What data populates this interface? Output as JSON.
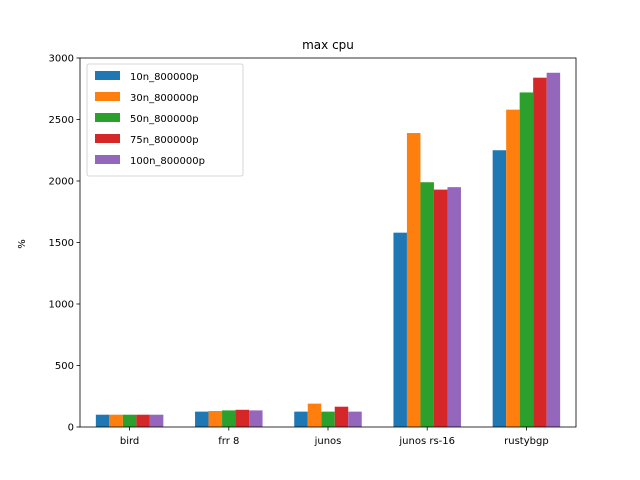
{
  "chart_data": {
    "type": "bar",
    "title": "max cpu",
    "xlabel": "",
    "ylabel": "%",
    "ylim": [
      0,
      3000
    ],
    "yticks": [
      0,
      500,
      1000,
      1500,
      2000,
      2500,
      3000
    ],
    "categories": [
      "bird",
      "frr 8",
      "junos",
      "junos rs-16",
      "rustybgp"
    ],
    "grid": false,
    "legend_position": "top-left",
    "series": [
      {
        "name": "10n_800000p",
        "color": "#1f77b4",
        "values": [
          100,
          125,
          125,
          1580,
          2250
        ]
      },
      {
        "name": "30n_800000p",
        "color": "#ff7f0e",
        "values": [
          100,
          130,
          190,
          2390,
          2580
        ]
      },
      {
        "name": "50n_800000p",
        "color": "#2ca02c",
        "values": [
          100,
          135,
          125,
          1990,
          2720
        ]
      },
      {
        "name": "75n_800000p",
        "color": "#d62728",
        "values": [
          100,
          140,
          165,
          1930,
          2840
        ]
      },
      {
        "name": "100n_800000p",
        "color": "#9467bd",
        "values": [
          100,
          135,
          125,
          1950,
          2880
        ]
      }
    ]
  }
}
